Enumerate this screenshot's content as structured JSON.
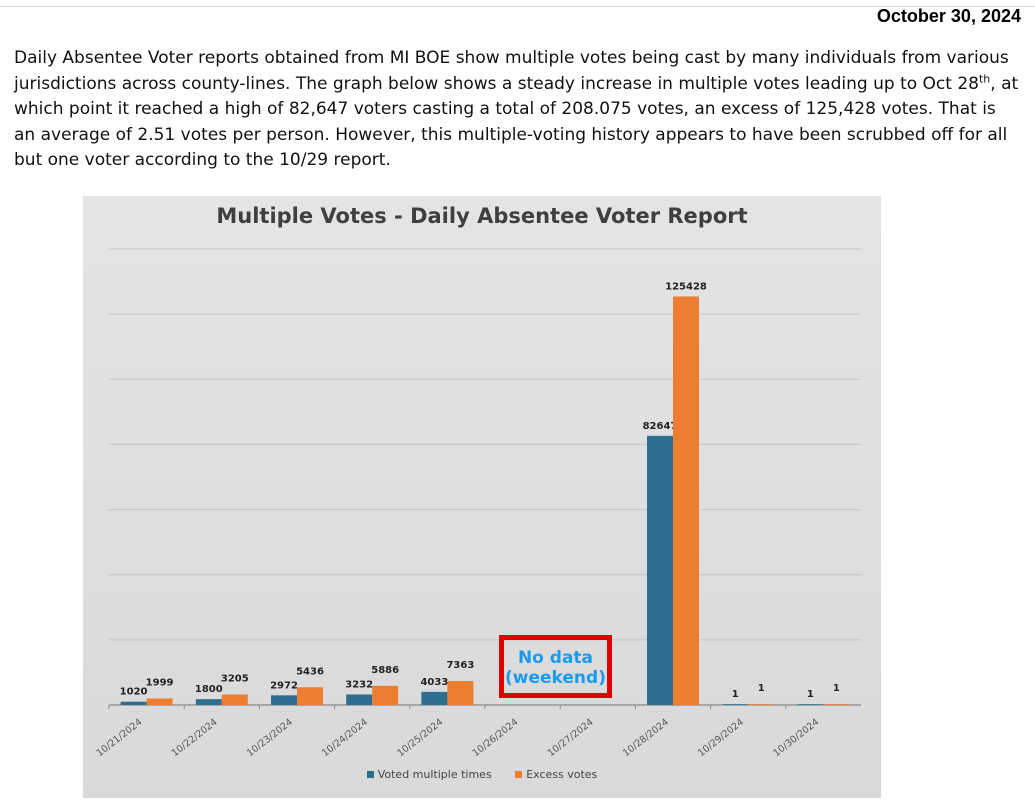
{
  "header": {
    "date": "October 30, 2024"
  },
  "intro": {
    "part1": "Daily Absentee Voter reports obtained from MI BOE show multiple votes being cast by many individuals from various jurisdictions across county-lines. The graph below shows a steady increase in multiple votes leading up to Oct 28",
    "sup": "th",
    "part2": ", at which point it reached a high of 82,647 voters casting a total of 208.075 votes, an excess of 125,428 votes. That is an average of 2.51 votes per person. However, this multiple-voting history appears to have been scrubbed off for all but one voter according to the 10/29 report."
  },
  "colors": {
    "voted": "#2e6e8e",
    "excess": "#ed7d31",
    "annotation_border": "#e00000",
    "annotation_text": "#1a9bef"
  },
  "chart_data": {
    "type": "bar",
    "title": "Multiple Votes - Daily Absentee Voter Report",
    "categories": [
      "10/21/2024",
      "10/22/2024",
      "10/23/2024",
      "10/24/2024",
      "10/25/2024",
      "10/26/2024",
      "10/27/2024",
      "10/28/2024",
      "10/29/2024",
      "10/30/2024"
    ],
    "series": [
      {
        "name": "Voted multiple times",
        "values": [
          1020,
          1800,
          2972,
          3232,
          4033,
          null,
          null,
          82647,
          1,
          1
        ]
      },
      {
        "name": "Excess votes",
        "values": [
          1999,
          3205,
          5436,
          5886,
          7363,
          null,
          null,
          125428,
          1,
          1
        ]
      }
    ],
    "ylim": [
      0,
      140000
    ],
    "grid": true,
    "legend": "bottom",
    "annotation": {
      "line1": "No data",
      "line2": "(weekend)"
    }
  }
}
